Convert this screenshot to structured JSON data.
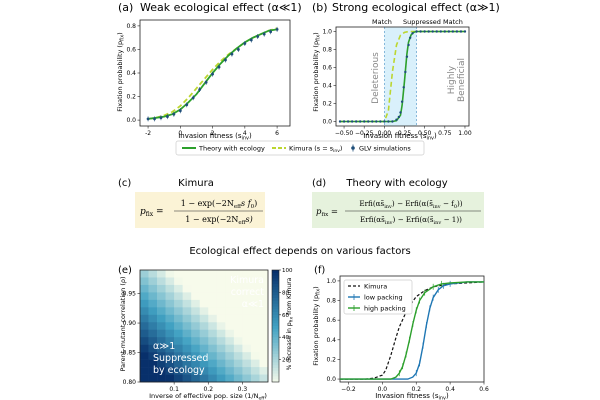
{
  "panels": {
    "a": {
      "letter": "(a)",
      "title": "Weak ecological effect (α≪1)"
    },
    "b": {
      "letter": "(b)",
      "title": "Strong ecological effect (α≫1)",
      "annotations": {
        "match_left": "Match",
        "suppressed": "Suppressed",
        "match_right": "Match",
        "deleterious": "Deleterious",
        "highly": "Highly",
        "beneficial": "Beneficial"
      }
    },
    "c": {
      "letter": "(c)",
      "heading": "Kimura",
      "formula": {
        "lhs": "p",
        "lhs_sub": "fix",
        "eq": " = ",
        "numerator": "1 − exp(−2N",
        "num_sub": "eff",
        "num_tail": "s f",
        "num_sub2": "0",
        "num_end": ")",
        "denominator": "1 − exp(−2N",
        "den_sub": "eff",
        "den_tail": "s)"
      }
    },
    "d": {
      "letter": "(d)",
      "heading": "Theory with ecology",
      "formula": {
        "lhs": "p",
        "lhs_sub": "fix",
        "eq": " = ",
        "numerator": "Erfi(αs̃",
        "n_sub1": "inv",
        "n_mid": ") − Erfi(α(s̃",
        "n_sub2": "inv",
        "n_end": " − f",
        "n_sub3": "0",
        "n_close": "))",
        "denominator": "Erfi(αs̃",
        "d_sub1": "inv",
        "d_mid": ") − Erfi(α(s̃",
        "d_sub2": "inv",
        "d_end": " − 1))"
      }
    },
    "e": {
      "letter": "(e)",
      "annotations": {
        "kimura": "Kimura",
        "correct": "correct",
        "alpha_small": "α≪1",
        "alpha_large": "α≫1",
        "suppressed": "Suppressed",
        "by_ecology": "by ecology"
      }
    },
    "f": {
      "letter": "(f)"
    }
  },
  "section_title": "Ecological effect depends on various factors",
  "legend_ab": {
    "theory": "Theory with ecology",
    "kimura": "Kimura (s = s",
    "kimura_sub": "inv",
    "kimura_end": ")",
    "glv": "GLV simulations"
  },
  "colors": {
    "theory": "#2ca02c",
    "kimura": "#bcd630",
    "glv": "#1f4e79",
    "suppressed_band": "#d9f0fb",
    "match": "#c8a040",
    "suppressed_text": "#2f7fb8",
    "box_c": "#fbf3d6",
    "box_d": "#e6f2dd",
    "low_packing": "#1f77b4",
    "high_packing": "#2ca02c"
  },
  "chart_data": [
    {
      "id": "a",
      "type": "line",
      "xlabel": "Invasion fitness (s",
      "xlabel_sub": "inv",
      "xlabel_end": ")",
      "ylabel": "Fixation probability (p",
      "ylabel_sub": "fix",
      "ylabel_end": ")",
      "xlim": [
        -2.5,
        6.8
      ],
      "ylim": [
        -0.05,
        0.85
      ],
      "xticks": [
        -2,
        0,
        2,
        4,
        6
      ],
      "yticks": [
        0.0,
        0.2,
        0.4,
        0.6,
        0.8
      ],
      "series": [
        {
          "name": "Kimura",
          "style": "dashed",
          "x": [
            -2,
            -1.5,
            -1,
            -0.5,
            0,
            0.5,
            1,
            1.5,
            2,
            2.5,
            3,
            3.5,
            4,
            4.5,
            5,
            5.5,
            6
          ],
          "y": [
            0.01,
            0.02,
            0.04,
            0.07,
            0.12,
            0.19,
            0.27,
            0.35,
            0.43,
            0.5,
            0.56,
            0.61,
            0.66,
            0.7,
            0.73,
            0.76,
            0.78
          ]
        },
        {
          "name": "Theory with ecology",
          "style": "solid",
          "x": [
            -2,
            -1.5,
            -1,
            -0.5,
            0,
            0.5,
            1,
            1.5,
            2,
            2.5,
            3,
            3.5,
            4,
            4.5,
            5,
            5.5,
            6
          ],
          "y": [
            0.01,
            0.02,
            0.03,
            0.05,
            0.09,
            0.15,
            0.22,
            0.31,
            0.4,
            0.48,
            0.55,
            0.61,
            0.66,
            0.7,
            0.73,
            0.76,
            0.77
          ]
        },
        {
          "name": "GLV simulations",
          "style": "points",
          "x": [
            -2,
            -1.6,
            -1.2,
            -0.8,
            -0.4,
            0,
            0.4,
            0.8,
            1.2,
            1.6,
            2,
            2.4,
            2.8,
            3.2,
            3.6,
            4,
            4.4,
            4.8,
            5.2,
            5.6,
            6
          ],
          "y": [
            0.01,
            0.01,
            0.02,
            0.03,
            0.05,
            0.08,
            0.13,
            0.19,
            0.26,
            0.32,
            0.39,
            0.45,
            0.51,
            0.56,
            0.6,
            0.65,
            0.68,
            0.71,
            0.73,
            0.75,
            0.77
          ]
        }
      ]
    },
    {
      "id": "b",
      "type": "line",
      "xlabel": "Invasion fitness (s",
      "xlabel_sub": "inv",
      "xlabel_end": ")",
      "ylabel": "Fixation probability (p",
      "ylabel_sub": "fix",
      "ylabel_end": ")",
      "xlim": [
        -0.6,
        1.05
      ],
      "ylim": [
        -0.05,
        1.05
      ],
      "xticks": [
        -0.5,
        -0.25,
        0.0,
        0.25,
        0.5,
        0.75,
        1.0
      ],
      "xtick_labels": [
        "−0.50",
        "−0.25",
        "0.00",
        "0.25",
        "0.50",
        "0.75",
        "1.00"
      ],
      "yticks": [
        0.0,
        0.2,
        0.4,
        0.6,
        0.8,
        1.0
      ],
      "band": [
        0.0,
        0.4
      ],
      "series": [
        {
          "name": "Kimura",
          "style": "dashed",
          "x": [
            -0.55,
            0,
            0.05,
            0.1,
            0.15,
            0.2,
            0.25,
            0.3,
            0.4,
            0.5,
            0.7,
            1.0
          ],
          "y": [
            0,
            0,
            0.12,
            0.55,
            0.85,
            0.96,
            0.99,
            1.0,
            1.0,
            1.0,
            1.0,
            1.0
          ]
        },
        {
          "name": "Theory with ecology",
          "style": "solid",
          "x": [
            -0.55,
            0,
            0.1,
            0.15,
            0.2,
            0.22,
            0.25,
            0.28,
            0.3,
            0.33,
            0.36,
            0.4,
            0.5,
            0.7,
            1.0
          ],
          "y": [
            0,
            0,
            0,
            0.01,
            0.07,
            0.18,
            0.45,
            0.75,
            0.88,
            0.96,
            0.99,
            1.0,
            1.0,
            1.0,
            1.0
          ]
        },
        {
          "name": "GLV simulations",
          "style": "points",
          "x": [
            -0.55,
            -0.5,
            -0.45,
            -0.4,
            -0.35,
            -0.3,
            -0.25,
            -0.2,
            -0.15,
            -0.1,
            -0.05,
            0,
            0.05,
            0.1,
            0.15,
            0.18,
            0.2,
            0.22,
            0.24,
            0.26,
            0.28,
            0.3,
            0.32,
            0.35,
            0.4,
            0.45,
            0.5,
            0.55,
            0.6,
            0.65,
            0.7,
            0.75,
            0.8,
            0.85,
            0.9,
            0.95,
            1.0
          ],
          "y": [
            0,
            0,
            0,
            0,
            0,
            0,
            0,
            0,
            0,
            0,
            0,
            0,
            0,
            0,
            0.02,
            0.05,
            0.1,
            0.22,
            0.38,
            0.55,
            0.72,
            0.85,
            0.93,
            0.98,
            1.0,
            1.0,
            1.0,
            1.0,
            1.0,
            1.0,
            1.0,
            1.0,
            1.0,
            1.0,
            1.0,
            1.0,
            1.0
          ]
        }
      ]
    },
    {
      "id": "e",
      "type": "heatmap",
      "xlabel": "Inverse of effective pop. size (1/N",
      "xlabel_sub": "eff",
      "xlabel_end": ")",
      "ylabel": "Parent-mutant correlation (ρ)",
      "colorbar_label": "% decrease in p",
      "colorbar_sub": "fix",
      "colorbar_end": " from Kimura",
      "xlim": [
        0,
        0.375
      ],
      "ylim": [
        0.8,
        0.99
      ],
      "xticks": [
        0.1,
        0.2,
        0.3
      ],
      "yticks": [
        0.8,
        0.85,
        0.9,
        0.95
      ],
      "colorbar_ticks": [
        20,
        40,
        60,
        80,
        100
      ],
      "colorbar_range": [
        0,
        100
      ],
      "grid_size": [
        15,
        15
      ]
    },
    {
      "id": "f",
      "type": "line",
      "xlabel": "Invasion fitness (s",
      "xlabel_sub": "inv",
      "xlabel_end": ")",
      "ylabel": "Fixation probability (p",
      "ylabel_sub": "fix",
      "ylabel_end": ")",
      "xlim": [
        -0.25,
        0.6
      ],
      "ylim": [
        -0.03,
        1.05
      ],
      "xticks": [
        -0.2,
        0.0,
        0.2,
        0.4,
        0.6
      ],
      "xtick_labels": [
        "−0.2",
        "0.0",
        "0.2",
        "0.4",
        "0.6"
      ],
      "yticks": [
        0.0,
        0.2,
        0.4,
        0.6,
        0.8,
        1.0
      ],
      "legend": [
        "Kimura",
        "low packing",
        "high packing"
      ],
      "series": [
        {
          "name": "Kimura",
          "style": "dashed",
          "x": [
            -0.25,
            -0.1,
            -0.05,
            0,
            0.02,
            0.05,
            0.08,
            0.1,
            0.15,
            0.2,
            0.25,
            0.3,
            0.4,
            0.5,
            0.6
          ],
          "y": [
            0,
            0,
            0.01,
            0.04,
            0.09,
            0.24,
            0.42,
            0.53,
            0.72,
            0.84,
            0.9,
            0.94,
            0.97,
            0.98,
            0.99
          ]
        },
        {
          "name": "low packing",
          "style": "errorbar",
          "x": [
            -0.25,
            0.15,
            0.18,
            0.2,
            0.22,
            0.24,
            0.26,
            0.28,
            0.3,
            0.33,
            0.36,
            0.4,
            0.45,
            0.5,
            0.55,
            0.6
          ],
          "y": [
            0,
            0,
            0.02,
            0.06,
            0.16,
            0.34,
            0.55,
            0.72,
            0.83,
            0.91,
            0.95,
            0.97,
            0.98,
            0.99,
            0.99,
            0.99
          ]
        },
        {
          "name": "high packing",
          "style": "errorbar",
          "x": [
            -0.25,
            0.05,
            0.08,
            0.1,
            0.12,
            0.14,
            0.16,
            0.18,
            0.2,
            0.22,
            0.25,
            0.3,
            0.35,
            0.4,
            0.5,
            0.6
          ],
          "y": [
            0,
            0,
            0.02,
            0.06,
            0.13,
            0.25,
            0.4,
            0.56,
            0.7,
            0.8,
            0.88,
            0.94,
            0.97,
            0.98,
            0.99,
            0.99
          ]
        }
      ]
    }
  ]
}
